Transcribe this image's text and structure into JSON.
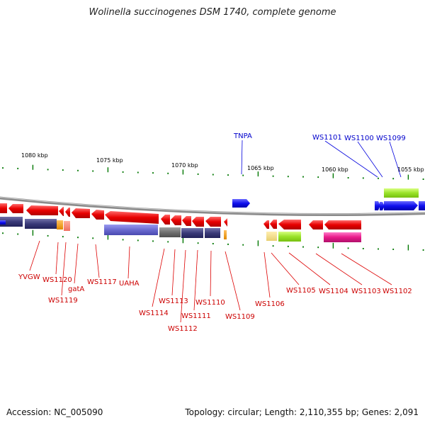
{
  "title": "Wolinella succinogenes DSM 1740, complete genome",
  "footer": {
    "accession": "Accession: NC_005090",
    "summary": "Topology: circular; Length: 2,110,355 bp; Genes: 2,091"
  },
  "colors": {
    "backbone": "#909090",
    "reverse": "#ee0000",
    "forward": "#0000ee",
    "tick": "#007700",
    "label_reverse": "#cc0000",
    "label_forward": "#0000cc"
  },
  "scale_labels": [
    "1080 kbp",
    "1075 kbp",
    "1070 kbp",
    "1065 kbp",
    "1060 kbp",
    "1055 kbp"
  ],
  "reverse_genes": [
    "YVGW",
    "WS1120",
    "WS1119",
    "gatA",
    "WS1117",
    "UAHA",
    "WS1114",
    "WS1113",
    "WS1112",
    "WS1111",
    "WS1110",
    "WS1109",
    "WS1106",
    "WS1105",
    "WS1104",
    "WS1103",
    "WS1102"
  ],
  "forward_genes": [
    "TNPA",
    "WS1101",
    "WS1100",
    "WS1099"
  ]
}
